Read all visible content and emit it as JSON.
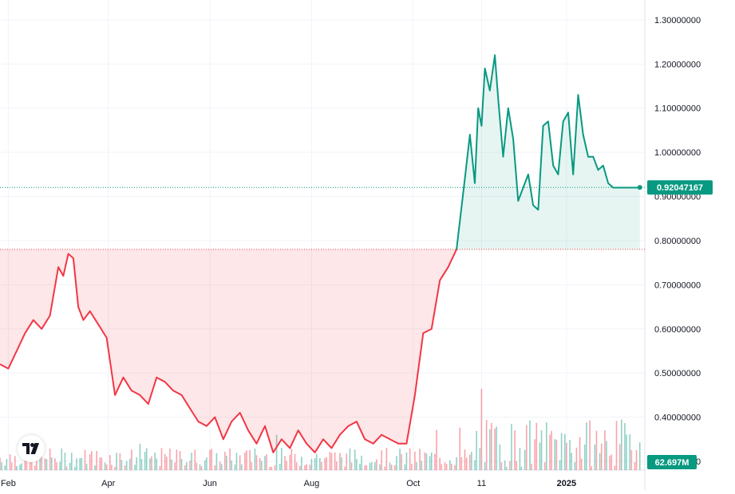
{
  "chart_data": {
    "type": "area",
    "baseline_value": 0.78,
    "y_axis": {
      "ticks": [
        "1.30000000",
        "1.20000000",
        "1.10000000",
        "1.00000000",
        "0.90000000",
        "0.80000000",
        "0.70000000",
        "0.60000000",
        "0.50000000",
        "0.40000000",
        "0.30000000"
      ],
      "tick_values": [
        1.3,
        1.2,
        1.1,
        1.0,
        0.9,
        0.8,
        0.7,
        0.6,
        0.5,
        0.4,
        0.3
      ],
      "range": [
        0.235,
        1.345
      ]
    },
    "x_axis": {
      "labels": [
        "Feb",
        "Apr",
        "Jun",
        "Aug",
        "Oct",
        "11",
        "2025"
      ],
      "label_dates": [
        "2024-02-01",
        "2024-04-01",
        "2024-06-01",
        "2024-08-01",
        "2024-10-01",
        "2024-11-11",
        "2025-01-01"
      ],
      "range": [
        "2024-01-27",
        "2025-02-17"
      ]
    },
    "price_series": {
      "dates": [
        "2024-01-27",
        "2024-02-01",
        "2024-02-06",
        "2024-02-11",
        "2024-02-16",
        "2024-02-21",
        "2024-02-26",
        "2024-03-02",
        "2024-03-05",
        "2024-03-08",
        "2024-03-11",
        "2024-03-14",
        "2024-03-17",
        "2024-03-21",
        "2024-03-26",
        "2024-03-31",
        "2024-04-05",
        "2024-04-10",
        "2024-04-15",
        "2024-04-20",
        "2024-04-25",
        "2024-04-30",
        "2024-05-05",
        "2024-05-10",
        "2024-05-15",
        "2024-05-20",
        "2024-05-25",
        "2024-05-30",
        "2024-06-04",
        "2024-06-09",
        "2024-06-14",
        "2024-06-19",
        "2024-06-24",
        "2024-06-29",
        "2024-07-04",
        "2024-07-09",
        "2024-07-14",
        "2024-07-19",
        "2024-07-24",
        "2024-07-29",
        "2024-08-03",
        "2024-08-08",
        "2024-08-13",
        "2024-08-18",
        "2024-08-23",
        "2024-08-28",
        "2024-09-02",
        "2024-09-07",
        "2024-09-12",
        "2024-09-17",
        "2024-09-22",
        "2024-09-27",
        "2024-10-02",
        "2024-10-07",
        "2024-10-12",
        "2024-10-17",
        "2024-10-22",
        "2024-10-27",
        "2024-11-01",
        "2024-11-04",
        "2024-11-07",
        "2024-11-09",
        "2024-11-11",
        "2024-11-13",
        "2024-11-16",
        "2024-11-19",
        "2024-11-21",
        "2024-11-24",
        "2024-11-27",
        "2024-11-30",
        "2024-12-03",
        "2024-12-06",
        "2024-12-09",
        "2024-12-12",
        "2024-12-15",
        "2024-12-18",
        "2024-12-21",
        "2024-12-24",
        "2024-12-27",
        "2024-12-30",
        "2025-01-02",
        "2025-01-05",
        "2025-01-08",
        "2025-01-11",
        "2025-01-14",
        "2025-01-17",
        "2025-01-20",
        "2025-01-23",
        "2025-01-26",
        "2025-01-29",
        "2025-02-01",
        "2025-02-04",
        "2025-02-07",
        "2025-02-10",
        "2025-02-14"
      ],
      "values": [
        0.52,
        0.51,
        0.55,
        0.59,
        0.62,
        0.6,
        0.63,
        0.74,
        0.72,
        0.77,
        0.76,
        0.65,
        0.62,
        0.64,
        0.61,
        0.58,
        0.45,
        0.49,
        0.46,
        0.45,
        0.43,
        0.49,
        0.48,
        0.46,
        0.45,
        0.42,
        0.39,
        0.38,
        0.4,
        0.35,
        0.39,
        0.41,
        0.37,
        0.34,
        0.38,
        0.32,
        0.35,
        0.33,
        0.37,
        0.34,
        0.32,
        0.35,
        0.33,
        0.36,
        0.38,
        0.39,
        0.35,
        0.34,
        0.36,
        0.35,
        0.34,
        0.34,
        0.45,
        0.59,
        0.6,
        0.71,
        0.74,
        0.78,
        0.94,
        1.04,
        0.93,
        1.1,
        1.06,
        1.19,
        1.14,
        1.22,
        1.12,
        0.99,
        1.1,
        1.03,
        0.89,
        0.92,
        0.95,
        0.88,
        0.87,
        1.06,
        1.07,
        0.97,
        0.95,
        1.07,
        1.09,
        0.95,
        1.13,
        1.04,
        0.99,
        0.99,
        0.96,
        0.97,
        0.93,
        0.92,
        0.92,
        0.92,
        0.92,
        0.92,
        0.92
      ],
      "color_above": "#089981",
      "color_below": "#f23645"
    },
    "volume": {
      "last_label": "62.697M",
      "bars_min_date": "2024-01-27",
      "bars_max_date": "2025-02-14"
    },
    "current_price": {
      "value": 0.92047167,
      "label": "0.92047167",
      "color": "#089981"
    },
    "grid": true
  }
}
